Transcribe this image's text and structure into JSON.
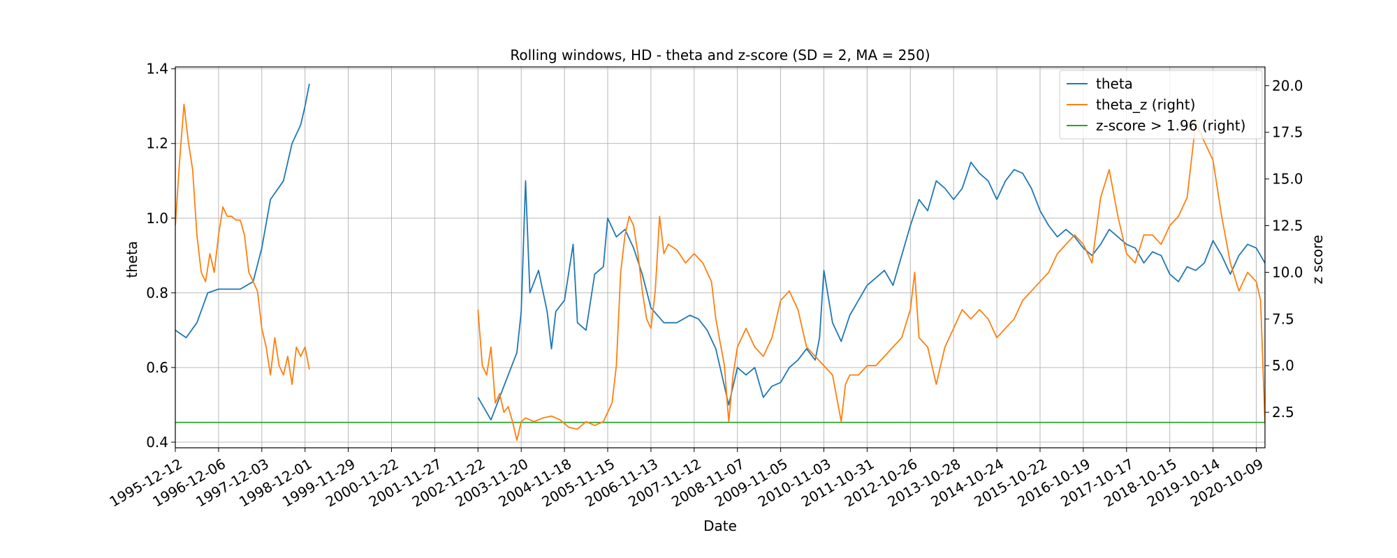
{
  "chart_data": {
    "type": "line",
    "title": "Rolling windows, HD - theta and z-score (SD = 2, MA = 250)",
    "xlabel": "Date",
    "ylabel_left": "theta",
    "ylabel_right": "z score",
    "x_ticks": [
      "1995-12-12",
      "1996-12-06",
      "1997-12-03",
      "1998-12-01",
      "1999-11-29",
      "2000-11-22",
      "2001-11-27",
      "2002-11-22",
      "2003-11-20",
      "2004-11-18",
      "2005-11-15",
      "2006-11-13",
      "2007-11-12",
      "2008-11-07",
      "2009-11-05",
      "2010-11-03",
      "2011-10-31",
      "2012-10-26",
      "2013-10-28",
      "2014-10-24",
      "2015-10-22",
      "2016-10-19",
      "2017-10-17",
      "2018-10-15",
      "2019-10-14",
      "2020-10-09"
    ],
    "y_left_ticks": [
      "0.4",
      "0.6",
      "0.8",
      "1.0",
      "1.2",
      "1.4"
    ],
    "y_right_ticks": [
      "2.5",
      "5.0",
      "7.5",
      "10.0",
      "12.5",
      "15.0",
      "17.5",
      "20.0"
    ],
    "ylim_left": [
      0.385,
      1.405
    ],
    "ylim_right": [
      0.6,
      21.0
    ],
    "grid": true,
    "legend_position": "top-right",
    "legend": [
      "theta",
      "theta_z (right)",
      "z-score > 1.96 (right)"
    ],
    "series": [
      {
        "name": "theta",
        "axis": "left",
        "color": "#1f77b4",
        "segments": [
          [
            [
              0,
              0.7
            ],
            [
              0.25,
              0.68
            ],
            [
              0.5,
              0.72
            ],
            [
              0.75,
              0.8
            ],
            [
              1.0,
              0.81
            ],
            [
              1.5,
              0.81
            ],
            [
              1.8,
              0.83
            ],
            [
              2.0,
              0.92
            ],
            [
              2.2,
              1.05
            ],
            [
              2.5,
              1.1
            ],
            [
              2.7,
              1.2
            ],
            [
              2.9,
              1.25
            ],
            [
              3.0,
              1.3
            ],
            [
              3.1,
              1.36
            ]
          ],
          [
            [
              7.0,
              0.52
            ],
            [
              7.3,
              0.46
            ],
            [
              7.6,
              0.55
            ],
            [
              7.9,
              0.64
            ],
            [
              8.0,
              0.75
            ],
            [
              8.1,
              1.1
            ],
            [
              8.2,
              0.8
            ],
            [
              8.4,
              0.86
            ],
            [
              8.6,
              0.75
            ],
            [
              8.7,
              0.65
            ],
            [
              8.8,
              0.75
            ],
            [
              9.0,
              0.78
            ],
            [
              9.2,
              0.93
            ],
            [
              9.3,
              0.72
            ],
            [
              9.5,
              0.7
            ],
            [
              9.7,
              0.85
            ],
            [
              9.9,
              0.87
            ],
            [
              10.0,
              1.0
            ],
            [
              10.2,
              0.95
            ],
            [
              10.4,
              0.97
            ],
            [
              10.6,
              0.92
            ],
            [
              10.8,
              0.85
            ],
            [
              11.0,
              0.76
            ],
            [
              11.3,
              0.72
            ],
            [
              11.6,
              0.72
            ],
            [
              11.9,
              0.74
            ],
            [
              12.1,
              0.73
            ],
            [
              12.3,
              0.7
            ],
            [
              12.5,
              0.65
            ],
            [
              12.7,
              0.55
            ],
            [
              12.8,
              0.5
            ],
            [
              13.0,
              0.6
            ],
            [
              13.2,
              0.58
            ],
            [
              13.4,
              0.6
            ],
            [
              13.6,
              0.52
            ],
            [
              13.8,
              0.55
            ],
            [
              14.0,
              0.56
            ],
            [
              14.2,
              0.6
            ],
            [
              14.4,
              0.62
            ],
            [
              14.6,
              0.65
            ],
            [
              14.8,
              0.62
            ],
            [
              14.9,
              0.68
            ],
            [
              15.0,
              0.86
            ],
            [
              15.2,
              0.72
            ],
            [
              15.4,
              0.67
            ],
            [
              15.6,
              0.74
            ],
            [
              15.8,
              0.78
            ],
            [
              16.0,
              0.82
            ],
            [
              16.2,
              0.84
            ],
            [
              16.4,
              0.86
            ],
            [
              16.6,
              0.82
            ],
            [
              16.8,
              0.9
            ],
            [
              17.0,
              0.98
            ],
            [
              17.2,
              1.05
            ],
            [
              17.4,
              1.02
            ],
            [
              17.6,
              1.1
            ],
            [
              17.8,
              1.08
            ],
            [
              18.0,
              1.05
            ],
            [
              18.2,
              1.08
            ],
            [
              18.4,
              1.15
            ],
            [
              18.6,
              1.12
            ],
            [
              18.8,
              1.1
            ],
            [
              19.0,
              1.05
            ],
            [
              19.2,
              1.1
            ],
            [
              19.4,
              1.13
            ],
            [
              19.6,
              1.12
            ],
            [
              19.8,
              1.08
            ],
            [
              20.0,
              1.02
            ],
            [
              20.2,
              0.98
            ],
            [
              20.4,
              0.95
            ],
            [
              20.6,
              0.97
            ],
            [
              20.8,
              0.95
            ],
            [
              21.0,
              0.92
            ],
            [
              21.2,
              0.9
            ],
            [
              21.4,
              0.93
            ],
            [
              21.6,
              0.97
            ],
            [
              21.8,
              0.95
            ],
            [
              22.0,
              0.93
            ],
            [
              22.2,
              0.92
            ],
            [
              22.4,
              0.88
            ],
            [
              22.6,
              0.91
            ],
            [
              22.8,
              0.9
            ],
            [
              23.0,
              0.85
            ],
            [
              23.2,
              0.83
            ],
            [
              23.4,
              0.87
            ],
            [
              23.6,
              0.86
            ],
            [
              23.8,
              0.88
            ],
            [
              24.0,
              0.94
            ],
            [
              24.2,
              0.9
            ],
            [
              24.4,
              0.85
            ],
            [
              24.6,
              0.9
            ],
            [
              24.8,
              0.93
            ],
            [
              25.0,
              0.92
            ],
            [
              25.2,
              0.88
            ],
            [
              25.3,
              0.87
            ]
          ]
        ]
      },
      {
        "name": "theta_z (right)",
        "axis": "right",
        "color": "#ff7f0e",
        "segments": [
          [
            [
              0,
              12.5
            ],
            [
              0.1,
              16.0
            ],
            [
              0.2,
              19.0
            ],
            [
              0.3,
              17.0
            ],
            [
              0.4,
              15.5
            ],
            [
              0.5,
              12.0
            ],
            [
              0.6,
              10.0
            ],
            [
              0.7,
              9.5
            ],
            [
              0.8,
              11.0
            ],
            [
              0.9,
              10.0
            ],
            [
              1.0,
              12.0
            ],
            [
              1.1,
              13.5
            ],
            [
              1.2,
              13.0
            ],
            [
              1.3,
              13.0
            ],
            [
              1.4,
              12.8
            ],
            [
              1.5,
              12.8
            ],
            [
              1.6,
              12.0
            ],
            [
              1.7,
              10.0
            ],
            [
              1.8,
              9.5
            ],
            [
              1.9,
              9.0
            ],
            [
              2.0,
              7.0
            ],
            [
              2.1,
              6.0
            ],
            [
              2.2,
              4.5
            ],
            [
              2.3,
              6.5
            ],
            [
              2.4,
              5.0
            ],
            [
              2.5,
              4.5
            ],
            [
              2.6,
              5.5
            ],
            [
              2.7,
              4.0
            ],
            [
              2.8,
              6.0
            ],
            [
              2.9,
              5.5
            ],
            [
              3.0,
              6.0
            ],
            [
              3.1,
              4.8
            ]
          ],
          [
            [
              7.0,
              8.0
            ],
            [
              7.1,
              5.0
            ],
            [
              7.2,
              4.5
            ],
            [
              7.3,
              6.0
            ],
            [
              7.4,
              3.0
            ],
            [
              7.5,
              3.5
            ],
            [
              7.6,
              2.5
            ],
            [
              7.7,
              2.8
            ],
            [
              7.8,
              2.0
            ],
            [
              7.9,
              1.0
            ],
            [
              8.0,
              2.0
            ],
            [
              8.1,
              2.2
            ],
            [
              8.3,
              2.0
            ],
            [
              8.5,
              2.2
            ],
            [
              8.7,
              2.3
            ],
            [
              8.9,
              2.1
            ],
            [
              9.1,
              1.7
            ],
            [
              9.3,
              1.6
            ],
            [
              9.5,
              2.0
            ],
            [
              9.7,
              1.8
            ],
            [
              9.9,
              2.0
            ],
            [
              10.1,
              3.0
            ],
            [
              10.2,
              5.0
            ],
            [
              10.3,
              10.0
            ],
            [
              10.4,
              12.0
            ],
            [
              10.5,
              13.0
            ],
            [
              10.6,
              12.5
            ],
            [
              10.7,
              11.0
            ],
            [
              10.8,
              9.0
            ],
            [
              10.9,
              7.5
            ],
            [
              11.0,
              7.0
            ],
            [
              11.1,
              9.0
            ],
            [
              11.2,
              13.0
            ],
            [
              11.3,
              11.0
            ],
            [
              11.4,
              11.5
            ],
            [
              11.6,
              11.2
            ],
            [
              11.8,
              10.5
            ],
            [
              12.0,
              11.0
            ],
            [
              12.2,
              10.5
            ],
            [
              12.4,
              9.5
            ],
            [
              12.5,
              7.5
            ],
            [
              12.7,
              5.0
            ],
            [
              12.8,
              2.0
            ],
            [
              12.9,
              4.5
            ],
            [
              13.0,
              6.0
            ],
            [
              13.2,
              7.0
            ],
            [
              13.4,
              6.0
            ],
            [
              13.6,
              5.5
            ],
            [
              13.8,
              6.5
            ],
            [
              14.0,
              8.5
            ],
            [
              14.2,
              9.0
            ],
            [
              14.4,
              8.0
            ],
            [
              14.6,
              6.0
            ],
            [
              14.8,
              5.5
            ],
            [
              15.0,
              5.0
            ],
            [
              15.2,
              4.5
            ],
            [
              15.4,
              2.0
            ],
            [
              15.5,
              4.0
            ],
            [
              15.6,
              4.5
            ],
            [
              15.8,
              4.5
            ],
            [
              16.0,
              5.0
            ],
            [
              16.2,
              5.0
            ],
            [
              16.4,
              5.5
            ],
            [
              16.6,
              6.0
            ],
            [
              16.8,
              6.5
            ],
            [
              17.0,
              8.0
            ],
            [
              17.1,
              10.0
            ],
            [
              17.2,
              6.5
            ],
            [
              17.4,
              6.0
            ],
            [
              17.6,
              4.0
            ],
            [
              17.8,
              6.0
            ],
            [
              18.0,
              7.0
            ],
            [
              18.2,
              8.0
            ],
            [
              18.4,
              7.5
            ],
            [
              18.6,
              8.0
            ],
            [
              18.8,
              7.5
            ],
            [
              19.0,
              6.5
            ],
            [
              19.2,
              7.0
            ],
            [
              19.4,
              7.5
            ],
            [
              19.6,
              8.5
            ],
            [
              19.8,
              9.0
            ],
            [
              20.0,
              9.5
            ],
            [
              20.2,
              10.0
            ],
            [
              20.4,
              11.0
            ],
            [
              20.6,
              11.5
            ],
            [
              20.8,
              12.0
            ],
            [
              21.0,
              11.5
            ],
            [
              21.2,
              10.5
            ],
            [
              21.4,
              14.0
            ],
            [
              21.6,
              15.5
            ],
            [
              21.8,
              13.0
            ],
            [
              22.0,
              11.0
            ],
            [
              22.2,
              10.5
            ],
            [
              22.4,
              12.0
            ],
            [
              22.6,
              12.0
            ],
            [
              22.8,
              11.5
            ],
            [
              23.0,
              12.5
            ],
            [
              23.2,
              13.0
            ],
            [
              23.4,
              14.0
            ],
            [
              23.6,
              18.0
            ],
            [
              23.8,
              17.0
            ],
            [
              24.0,
              16.0
            ],
            [
              24.2,
              13.0
            ],
            [
              24.4,
              10.5
            ],
            [
              24.6,
              9.0
            ],
            [
              24.8,
              10.0
            ],
            [
              25.0,
              9.5
            ],
            [
              25.1,
              8.5
            ],
            [
              25.2,
              2.0
            ],
            [
              25.3,
              9.0
            ],
            [
              25.4,
              9.5
            ],
            [
              25.5,
              10.0
            ],
            [
              25.6,
              10.5
            ],
            [
              25.7,
              10.5
            ],
            [
              25.8,
              10.0
            ],
            [
              25.9,
              10.5
            ],
            [
              26.0,
              11.0
            ],
            [
              26.2,
              11.0
            ]
          ]
        ]
      },
      {
        "name": "z-score > 1.96 (right)",
        "axis": "right",
        "color": "#2ca02c",
        "segments": [
          [
            [
              -0.1,
              1.96
            ],
            [
              26.5,
              1.96
            ]
          ]
        ]
      }
    ]
  }
}
